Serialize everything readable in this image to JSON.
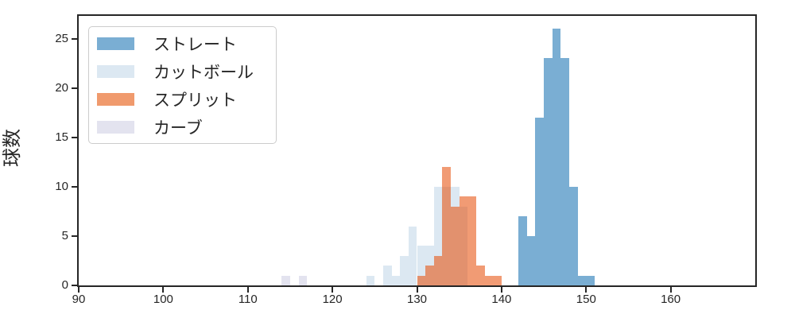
{
  "chart_data": {
    "type": "bar",
    "subtype": "histogram",
    "title": "",
    "xlabel": "",
    "ylabel": "球数",
    "xlim": [
      90,
      170
    ],
    "ylim": [
      0,
      27.3
    ],
    "xticks": [
      90,
      100,
      110,
      120,
      130,
      140,
      150,
      160
    ],
    "yticks": [
      0,
      5,
      10,
      15,
      20,
      25
    ],
    "bin_width": 1,
    "grid": false,
    "legend_position": "upper left",
    "series": [
      {
        "name": "ストレート",
        "color": "#7aaed3",
        "swatch_color": "#7aaed3",
        "bin_start": 142,
        "values": [
          7,
          5,
          17,
          23,
          26,
          23,
          10,
          1,
          1
        ]
      },
      {
        "name": "カットボール",
        "color": "#dce8f2",
        "swatch_color": "#dce8f2",
        "bin_start": 124,
        "values": [
          1,
          0,
          2,
          1,
          3,
          6,
          4,
          4,
          10,
          10,
          10,
          8
        ]
      },
      {
        "name": "スプリット",
        "color": "rgba(230,80,10,0.57)",
        "swatch_color": "#f09a6d",
        "bin_start": 130,
        "values": [
          1,
          2,
          3,
          12,
          8,
          9,
          9,
          2,
          1,
          1
        ]
      },
      {
        "name": "カーブ",
        "color": "#e3e3ef",
        "swatch_color": "#e3e3ef",
        "bin_start": 114,
        "values": [
          1,
          0,
          1
        ]
      }
    ],
    "colors": {
      "spine": "#262626",
      "tick_text": "#262626",
      "legend_border": "#cccccc",
      "background": "#ffffff"
    }
  }
}
